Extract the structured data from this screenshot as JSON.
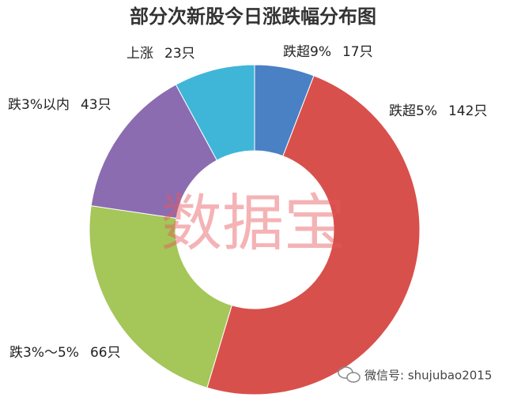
{
  "chart_data": {
    "type": "donut",
    "title": "部分次新股今日涨跌幅分布图",
    "categories": [
      "跌超9%",
      "跌超5%",
      "跌3%～5%",
      "跌3%以内",
      "上涨"
    ],
    "values": [
      17,
      142,
      66,
      43,
      23
    ],
    "value_labels": [
      "17只",
      "142只",
      "66只",
      "43只",
      "23只"
    ],
    "colors": [
      "#4a80c4",
      "#d8504b",
      "#a5c659",
      "#8b6cb1",
      "#3fb6d8"
    ]
  },
  "watermark": "数据宝",
  "footer": "微信号: shujubao2015"
}
